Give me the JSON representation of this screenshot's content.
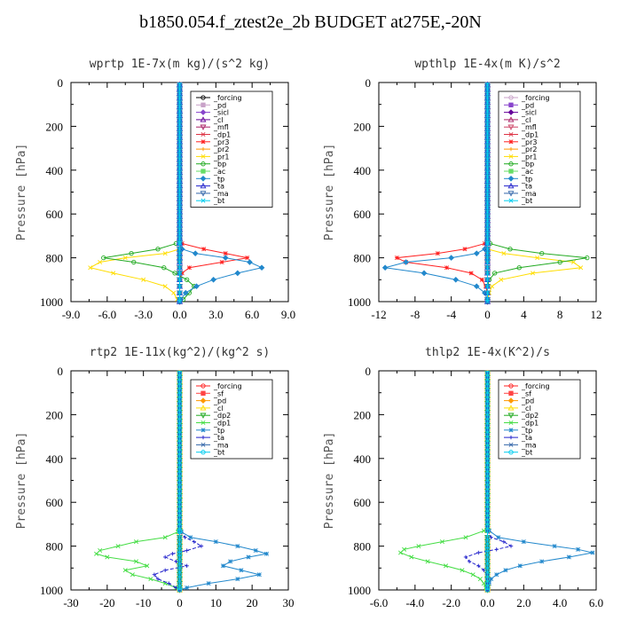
{
  "title": "b1850.054.f_ztest2e_2b  BUDGET at275E,-20N",
  "chart_data": [
    {
      "type": "line",
      "panel": "top-left",
      "title": "wprtp   1E-7x(m kg)/(s^2 kg)",
      "ylabel": "Pressure [hPa]",
      "xlim": [
        -9,
        9
      ],
      "xticks": [
        "-9.0",
        "-6.0",
        "-3.0",
        "0.0",
        "3.0",
        "6.0",
        "9.0"
      ],
      "ylim": [
        1000,
        0
      ],
      "yticks": [
        "0",
        "200",
        "400",
        "600",
        "800",
        "1000"
      ],
      "legend_position": "top-right",
      "p": [
        735,
        760,
        780,
        800,
        820,
        845,
        870,
        900,
        930,
        960,
        990,
        1000
      ],
      "series": [
        {
          "name": "_forcing",
          "color": "#000000",
          "values": [
            0,
            0,
            0,
            0,
            0,
            0,
            0,
            0,
            0,
            0,
            0,
            0
          ]
        },
        {
          "name": "_pd",
          "color": "#c8a2c8",
          "values": [
            0,
            0,
            0,
            0,
            0,
            0,
            0,
            0,
            0,
            0,
            0,
            0
          ]
        },
        {
          "name": "_sicl",
          "color": "#8844cc",
          "values": [
            0,
            0,
            0,
            0,
            0,
            0,
            0,
            0,
            0,
            0,
            0,
            0
          ]
        },
        {
          "name": "_cl",
          "color": "#660099",
          "values": [
            0,
            0,
            0,
            0,
            0,
            0,
            0,
            0,
            0,
            0,
            0,
            0
          ]
        },
        {
          "name": "_mfl",
          "color": "#aa2266",
          "values": [
            0,
            0,
            0,
            0,
            0,
            0,
            0,
            0,
            0,
            0,
            0,
            0
          ]
        },
        {
          "name": "_dp1",
          "color": "#dd3344",
          "values": [
            0,
            0,
            0,
            0,
            0,
            0,
            0,
            0,
            0,
            0,
            0,
            0
          ]
        },
        {
          "name": "_pr3",
          "color": "#ff2222",
          "values": [
            0.2,
            2.0,
            3.8,
            5.6,
            3.5,
            0.8,
            0.2,
            0,
            0,
            0,
            0,
            0
          ]
        },
        {
          "name": "_pr2",
          "color": "#ff9900",
          "values": [
            0,
            0,
            0,
            0,
            0,
            0,
            0,
            0,
            0,
            0,
            0,
            0
          ]
        },
        {
          "name": "_pr1",
          "color": "#ffdd00",
          "values": [
            0,
            0,
            -1.2,
            -4.5,
            -6.6,
            -7.4,
            -5.5,
            -3.0,
            -1.2,
            -0.5,
            -0.2,
            0
          ]
        },
        {
          "name": "_bp",
          "color": "#22aa22",
          "values": [
            -0.3,
            -1.8,
            -4.0,
            -6.3,
            -3.8,
            -1.3,
            -0.4,
            0.6,
            1.2,
            0.8,
            0.3,
            0
          ]
        },
        {
          "name": "_ac",
          "color": "#66dd66",
          "values": [
            0,
            0,
            0,
            0,
            0,
            0,
            0,
            0,
            0,
            0,
            0,
            0
          ]
        },
        {
          "name": "_tp",
          "color": "#2288cc",
          "values": [
            0,
            0.2,
            1.3,
            3.8,
            5.8,
            6.8,
            4.8,
            2.8,
            1.4,
            0.5,
            0.1,
            0
          ]
        },
        {
          "name": "_ta",
          "color": "#2222cc",
          "values": [
            0,
            0,
            0,
            0,
            0,
            0,
            0,
            0,
            0,
            0,
            0,
            0
          ]
        },
        {
          "name": "_ma",
          "color": "#3366aa",
          "values": [
            0,
            0,
            0,
            0,
            0,
            0,
            0,
            0,
            0,
            0,
            0,
            0
          ]
        },
        {
          "name": "_bt",
          "color": "#00ccee",
          "values": [
            0,
            0,
            0,
            0,
            0,
            0,
            0,
            0,
            0,
            0,
            0,
            0
          ]
        }
      ]
    },
    {
      "type": "line",
      "panel": "top-right",
      "title": "wpthlp   1E-4x(m K)/s^2",
      "ylabel": "Pressure [hPa]",
      "xlim": [
        -12,
        12
      ],
      "xticks": [
        "-12",
        "-8",
        "-4",
        "0",
        "4",
        "8",
        "12"
      ],
      "ylim": [
        1000,
        0
      ],
      "yticks": [
        "0",
        "200",
        "400",
        "600",
        "800",
        "1000"
      ],
      "legend_position": "top-right",
      "p": [
        735,
        760,
        780,
        800,
        820,
        845,
        870,
        900,
        930,
        960,
        990,
        1000
      ],
      "series": [
        {
          "name": "_forcing",
          "color": "#c8a2c8",
          "values": [
            0,
            0,
            0,
            0,
            0,
            0,
            0,
            0,
            0,
            0,
            0,
            0
          ]
        },
        {
          "name": "_pd",
          "color": "#8844cc",
          "values": [
            0,
            0,
            0,
            0,
            0,
            0,
            0,
            0,
            0,
            0,
            0,
            0
          ]
        },
        {
          "name": "_sicl",
          "color": "#660099",
          "values": [
            0,
            0,
            0,
            0,
            0,
            0,
            0,
            0,
            0,
            0,
            0,
            0
          ]
        },
        {
          "name": "_cl",
          "color": "#aa2266",
          "values": [
            0,
            0,
            0,
            0,
            0,
            0,
            0,
            0,
            0,
            0,
            0,
            0
          ]
        },
        {
          "name": "_mfl",
          "color": "#cc4466",
          "values": [
            0,
            0,
            0,
            0,
            0,
            0,
            0,
            0,
            0,
            0,
            0,
            0
          ]
        },
        {
          "name": "_dp1",
          "color": "#dd3344",
          "values": [
            0,
            0,
            0,
            0,
            0,
            0,
            0,
            0,
            0,
            0,
            0,
            0
          ]
        },
        {
          "name": "_pr3",
          "color": "#ff2222",
          "values": [
            -0.3,
            -2.5,
            -5.5,
            -10.0,
            -9.0,
            -4.5,
            -1.8,
            -0.6,
            -0.2,
            0,
            0,
            0
          ]
        },
        {
          "name": "_pr2",
          "color": "#ff9900",
          "values": [
            0,
            0,
            0,
            0,
            0,
            0,
            0,
            0,
            0,
            0,
            0,
            0
          ]
        },
        {
          "name": "_pr1",
          "color": "#ffdd00",
          "values": [
            0,
            0,
            1.8,
            5.5,
            9.5,
            10.3,
            5.0,
            1.5,
            0.5,
            0.2,
            0,
            0
          ]
        },
        {
          "name": "_bp",
          "color": "#22aa22",
          "values": [
            0.3,
            2.5,
            6.0,
            11.0,
            8.0,
            3.5,
            0.8,
            0.2,
            0,
            0,
            0,
            0
          ]
        },
        {
          "name": "_ac",
          "color": "#66dd66",
          "values": [
            0,
            0,
            0,
            0,
            0,
            0,
            0,
            0,
            0,
            0,
            0,
            0
          ]
        },
        {
          "name": "_tp",
          "color": "#2288cc",
          "values": [
            0,
            -0.3,
            -1.2,
            -4.0,
            -9.0,
            -11.3,
            -7.0,
            -3.5,
            -1.2,
            -0.3,
            0,
            0
          ]
        },
        {
          "name": "_ta",
          "color": "#2222cc",
          "values": [
            0,
            0,
            0,
            0,
            0,
            0,
            0,
            0,
            0,
            0,
            0,
            0
          ]
        },
        {
          "name": "_ma",
          "color": "#3366aa",
          "values": [
            0,
            0,
            0,
            0,
            0,
            0,
            0,
            0,
            0,
            0,
            0,
            0
          ]
        },
        {
          "name": "_bt",
          "color": "#00ccee",
          "values": [
            0,
            0,
            0,
            0,
            0,
            0,
            0,
            0,
            0,
            0,
            0,
            0
          ]
        }
      ]
    },
    {
      "type": "line",
      "panel": "bottom-left",
      "title": "rtp2   1E-11x(kg^2)/(kg^2 s)",
      "ylabel": "Pressure [hPa]",
      "xlim": [
        -30,
        30
      ],
      "xticks": [
        "-30",
        "-20",
        "-10",
        "0",
        "10",
        "20",
        "30"
      ],
      "ylim": [
        1000,
        0
      ],
      "yticks": [
        "0",
        "200",
        "400",
        "600",
        "800",
        "1000"
      ],
      "legend_position": "top-right",
      "p": [
        735,
        760,
        780,
        800,
        820,
        835,
        850,
        870,
        890,
        910,
        930,
        950,
        970,
        990,
        1000
      ],
      "series": [
        {
          "name": "_forcing",
          "color": "#ff2222",
          "values": [
            0,
            0,
            0,
            0,
            0,
            0,
            0,
            0,
            0,
            0,
            0,
            0,
            0,
            0,
            0
          ]
        },
        {
          "name": "_sf",
          "color": "#ff4444",
          "values": [
            0,
            0,
            0,
            0,
            0,
            0,
            0,
            0,
            0,
            0,
            0,
            0,
            0,
            0,
            0
          ]
        },
        {
          "name": "_pd",
          "color": "#ff9900",
          "values": [
            0,
            0,
            0,
            0,
            0,
            0,
            0,
            0,
            0,
            0,
            0,
            0,
            0,
            0,
            0
          ]
        },
        {
          "name": "_cl",
          "color": "#ffdd00",
          "values": [
            0,
            0,
            0,
            0,
            0,
            0,
            0,
            0,
            0,
            0,
            0,
            0,
            0,
            0,
            0
          ]
        },
        {
          "name": "_dp2",
          "color": "#22aa22",
          "values": [
            0,
            0,
            0,
            0,
            0,
            0,
            0,
            0,
            0,
            0,
            0,
            0,
            0,
            0,
            0
          ]
        },
        {
          "name": "_dp1",
          "color": "#44dd44",
          "values": [
            -0.5,
            -4,
            -12,
            -17,
            -22,
            -23,
            -20,
            -12,
            -9,
            -15,
            -13,
            -8,
            -4,
            -1,
            0
          ]
        },
        {
          "name": "_tp",
          "color": "#2288cc",
          "values": [
            0.5,
            3,
            10,
            16,
            21,
            24,
            19,
            14,
            12,
            17,
            22,
            16,
            8,
            2,
            0
          ]
        },
        {
          "name": "_ta",
          "color": "#2222cc",
          "values": [
            0,
            1.5,
            4,
            6,
            2,
            -2,
            -4,
            -1,
            2,
            -4,
            -7,
            -6,
            -3,
            -1,
            0
          ]
        },
        {
          "name": "_ma",
          "color": "#3366aa",
          "values": [
            0,
            0,
            0,
            0,
            0,
            0,
            0,
            0,
            0,
            0,
            0,
            0,
            0,
            0,
            0
          ]
        },
        {
          "name": "_bt",
          "color": "#00ccee",
          "values": [
            0,
            0,
            0,
            0,
            0,
            0,
            0,
            0,
            0,
            0,
            0,
            0,
            0,
            0,
            0
          ]
        }
      ]
    },
    {
      "type": "line",
      "panel": "bottom-right",
      "title": "thlp2   1E-4x(K^2)/s",
      "ylabel": "Pressure [hPa]",
      "xlim": [
        -6,
        6
      ],
      "xticks": [
        "-6.0",
        "-4.0",
        "-2.0",
        "0.0",
        "2.0",
        "4.0",
        "6.0"
      ],
      "ylim": [
        1000,
        0
      ],
      "yticks": [
        "0",
        "200",
        "400",
        "600",
        "800",
        "1000"
      ],
      "legend_position": "top-right",
      "p": [
        730,
        760,
        780,
        800,
        815,
        830,
        850,
        870,
        890,
        910,
        930,
        950,
        970,
        990,
        1000
      ],
      "series": [
        {
          "name": "_forcing",
          "color": "#ff2222",
          "values": [
            0,
            0,
            0,
            0,
            0,
            0,
            0,
            0,
            0,
            0,
            0,
            0,
            0,
            0,
            0
          ]
        },
        {
          "name": "_sf",
          "color": "#ff4444",
          "values": [
            0,
            0,
            0,
            0,
            0,
            0,
            0,
            0,
            0,
            0,
            0,
            0,
            0,
            0,
            0
          ]
        },
        {
          "name": "_pd",
          "color": "#ff9900",
          "values": [
            0,
            0,
            0,
            0,
            0,
            0,
            0,
            0,
            0,
            0,
            0,
            0,
            0,
            0,
            0
          ]
        },
        {
          "name": "_cl",
          "color": "#ffdd00",
          "values": [
            0,
            0,
            0,
            0,
            0,
            0,
            0,
            0,
            0,
            0,
            0,
            0,
            0,
            0,
            0
          ]
        },
        {
          "name": "_dp2",
          "color": "#22aa22",
          "values": [
            0,
            0,
            0,
            0,
            0,
            0,
            0,
            0,
            0,
            0,
            0,
            0,
            0,
            0,
            0
          ]
        },
        {
          "name": "_dp1",
          "color": "#44dd44",
          "values": [
            -0.2,
            -1.2,
            -2.5,
            -3.8,
            -4.6,
            -4.8,
            -4.2,
            -3.3,
            -2.3,
            -1.4,
            -0.8,
            -0.4,
            -0.2,
            -0.1,
            0
          ]
        },
        {
          "name": "_tp",
          "color": "#2288cc",
          "values": [
            0.1,
            0.6,
            2.0,
            3.7,
            5.0,
            5.8,
            4.5,
            3.0,
            1.8,
            1.0,
            0.5,
            0.2,
            0.1,
            0,
            0
          ]
        },
        {
          "name": "_ta",
          "color": "#2222cc",
          "values": [
            0,
            0.2,
            0.9,
            1.3,
            0.5,
            -0.5,
            -1.2,
            -1.0,
            -0.5,
            -0.2,
            0,
            0,
            0,
            0,
            0
          ]
        },
        {
          "name": "_ma",
          "color": "#3366aa",
          "values": [
            0,
            0,
            0,
            0,
            0,
            0,
            0,
            0,
            0,
            0,
            0,
            0,
            0,
            0,
            0
          ]
        },
        {
          "name": "_bt",
          "color": "#00ccee",
          "values": [
            0,
            0,
            0,
            0,
            0,
            0,
            0,
            0,
            0,
            0,
            0,
            0,
            0,
            0,
            0
          ]
        }
      ]
    }
  ]
}
